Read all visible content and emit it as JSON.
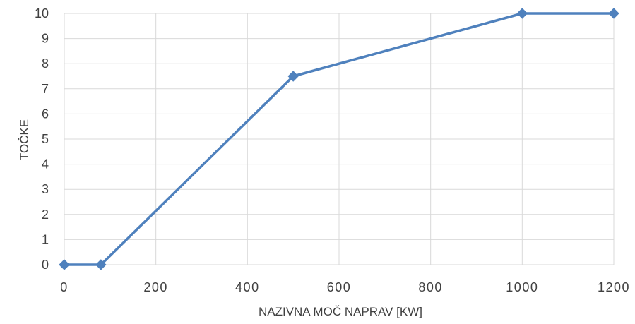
{
  "chart_data": {
    "type": "line",
    "title": "",
    "xlabel": "NAZIVNA MOČ NAPRAV [KW]",
    "ylabel": "TOČKE",
    "xlim": [
      0,
      1200
    ],
    "ylim": [
      0,
      10
    ],
    "x_ticks": [
      0,
      200,
      400,
      600,
      800,
      1000,
      1200
    ],
    "y_ticks": [
      0,
      1,
      2,
      3,
      4,
      5,
      6,
      7,
      8,
      9,
      10
    ],
    "x_tick_labels": [
      "0",
      "200",
      "400",
      "600",
      "800",
      "1000",
      "1200"
    ],
    "y_tick_labels": [
      "0",
      "1",
      "2",
      "3",
      "4",
      "5",
      "6",
      "7",
      "8",
      "9",
      "10"
    ],
    "grid": true,
    "legend": "none",
    "marker": "diamond",
    "series": [
      {
        "color": "#4f81bd",
        "x": [
          0,
          80,
          500,
          1000,
          1200
        ],
        "y": [
          0,
          0,
          7.5,
          10,
          10
        ]
      }
    ]
  }
}
